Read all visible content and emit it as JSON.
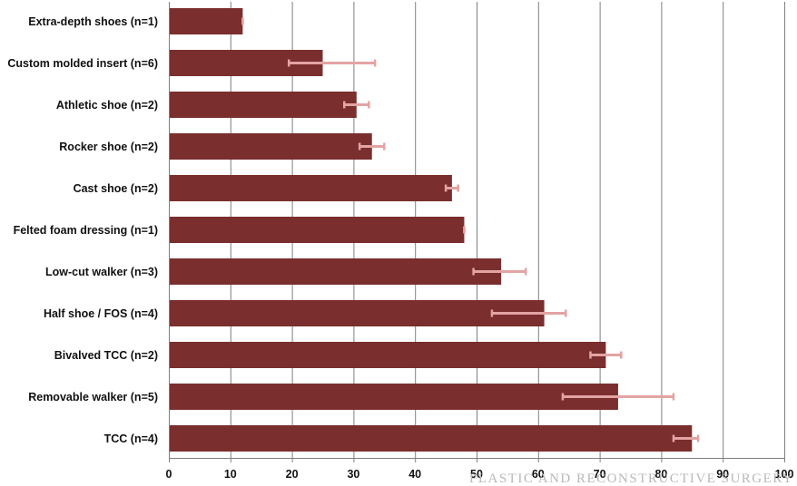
{
  "chart_data": {
    "type": "bar",
    "orientation": "horizontal",
    "categories": [
      "Extra-depth shoes (n=1)",
      "Custom molded insert (n=6)",
      "Athletic shoe (n=2)",
      "Rocker shoe (n=2)",
      "Cast shoe (n=2)",
      "Felted foam dressing (n=1)",
      "Low-cut walker (n=3)",
      "Half shoe / FOS (n=4)",
      "Bivalved TCC (n=2)",
      "Removable walker (n=5)",
      "TCC (n=4)"
    ],
    "values": [
      12,
      25,
      30.5,
      33,
      46,
      48,
      54,
      61,
      71,
      73,
      85
    ],
    "error_low": [
      12,
      19.5,
      28.5,
      31,
      45,
      48,
      49.5,
      52.5,
      68.5,
      64,
      82
    ],
    "error_high": [
      12,
      33.5,
      32.5,
      35,
      47,
      48,
      58,
      64.5,
      73.5,
      82,
      86
    ],
    "x_ticks": [
      "0",
      "10",
      "20",
      "30",
      "40",
      "50",
      "60",
      "70",
      "80",
      "90",
      "100"
    ],
    "xlim": [
      0,
      100
    ],
    "title": "",
    "xlabel": "",
    "ylabel": "",
    "grid": "vertical",
    "legend": "none",
    "bar_color": "#7a2e2e",
    "error_color": "#e3a3a3"
  },
  "watermark": "PLASTIC AND RECONSTRUCTIVE SURGERY"
}
